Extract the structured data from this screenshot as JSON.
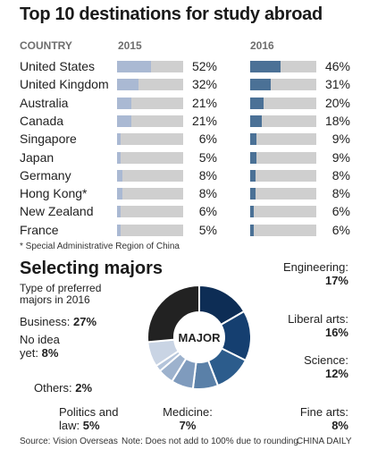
{
  "chart_data": [
    {
      "type": "bar",
      "title": "Top 10 destinations for study abroad",
      "column_header": "COUNTRY",
      "categories": [
        "United States",
        "United Kingdom",
        "Australia",
        "Canada",
        "Singapore",
        "Japan",
        "Germany",
        "Hong Kong*",
        "New Zealand",
        "France"
      ],
      "series": [
        {
          "name": "2015",
          "values": [
            52,
            32,
            21,
            21,
            6,
            5,
            8,
            8,
            6,
            5
          ],
          "labels": [
            "52%",
            "32%",
            "21%",
            "21%",
            "6%",
            "5%",
            "8%",
            "8%",
            "6%",
            "5%"
          ],
          "color": "#aab9d3"
        },
        {
          "name": "2016",
          "values": [
            46,
            31,
            20,
            18,
            9,
            9,
            8,
            8,
            6,
            6
          ],
          "labels": [
            "46%",
            "31%",
            "20%",
            "18%",
            "9%",
            "9%",
            "8%",
            "8%",
            "6%",
            "6%"
          ],
          "color": "#4b7196"
        }
      ],
      "ylim": [
        0,
        100
      ],
      "track_color": "#cfcfcf",
      "footnote": "* Special Administrative Region of China"
    },
    {
      "type": "pie",
      "title": "Selecting majors",
      "subtitle": "Type of preferred majors in 2016",
      "center_label": "MAJOR",
      "slices": [
        {
          "label": "Engineering:",
          "value": 17,
          "text": "17%",
          "color": "#0d2d55"
        },
        {
          "label": "Liberal arts:",
          "value": 16,
          "text": "16%",
          "color": "#153f70"
        },
        {
          "label": "Science:",
          "value": 12,
          "text": "12%",
          "color": "#2c5c8c"
        },
        {
          "label": "Fine arts:",
          "value": 8,
          "text": "8%",
          "color": "#5a80a8"
        },
        {
          "label": "Medicine:",
          "value": 7,
          "text": "7%",
          "color": "#7f9bbd"
        },
        {
          "label": "Politics and law:",
          "value": 5,
          "text": "5%",
          "color": "#9db2cd"
        },
        {
          "label": "Others:",
          "value": 2,
          "text": "2%",
          "color": "#b4c4da"
        },
        {
          "label": "No idea yet:",
          "value": 8,
          "text": "8%",
          "color": "#c9d4e4"
        },
        {
          "label": "Business:",
          "value": 27,
          "text": "27%",
          "color": "#222222"
        }
      ]
    }
  ],
  "source": "Source: Vision Overseas",
  "note": "Note: Does not add to 100% due to rounding",
  "credit": "CHINA DAILY"
}
